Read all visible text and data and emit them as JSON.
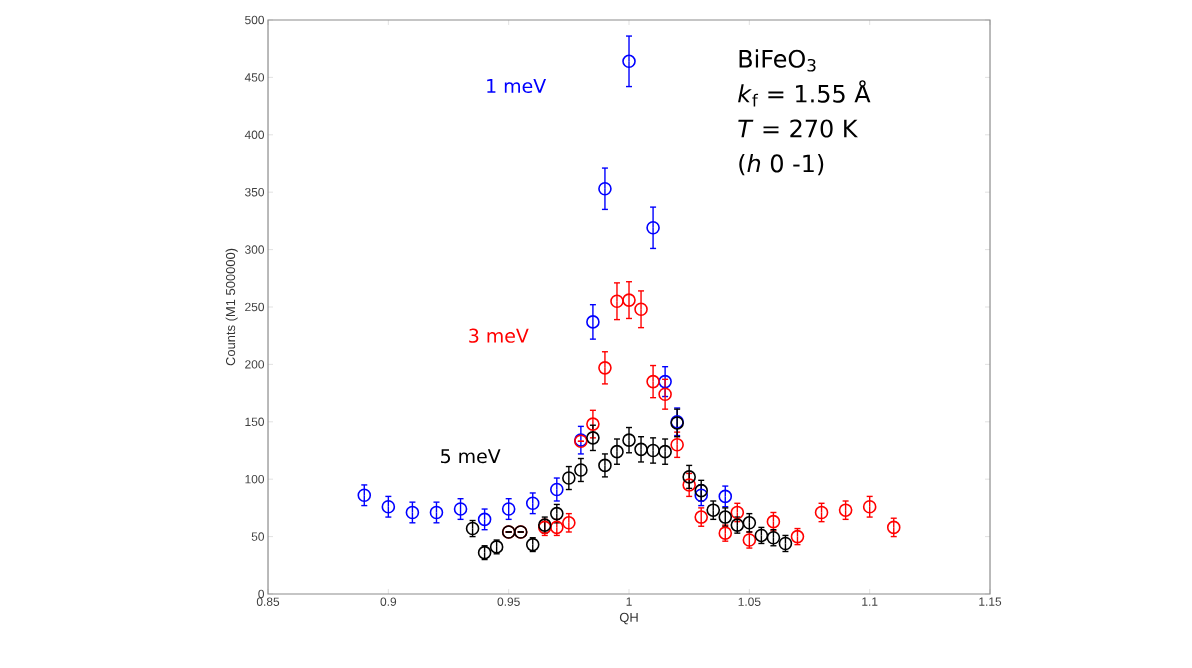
{
  "chart_data": {
    "type": "scatter",
    "xlabel": "QH",
    "ylabel": "Counts (M1 500000)",
    "xlim": [
      0.85,
      1.15
    ],
    "ylim": [
      0,
      500
    ],
    "xticks": [
      0.85,
      0.9,
      0.95,
      1,
      1.05,
      1.1,
      1.15
    ],
    "yticks": [
      0,
      50,
      100,
      150,
      200,
      250,
      300,
      350,
      400,
      450,
      500
    ],
    "marker": "circle",
    "grid": false,
    "annotations": [
      "BiFeO$_{3}$",
      "*k*$_{f}$ = 1.55 Å",
      "*T* = 270 K",
      "(*h* 0 -1)"
    ],
    "series": [
      {
        "name": "1 meV",
        "color": "#0000ff",
        "x": [
          0.89,
          0.9,
          0.91,
          0.92,
          0.93,
          0.94,
          0.95,
          0.96,
          0.97,
          0.98,
          0.985,
          0.99,
          1.0,
          1.01,
          1.015,
          1.02,
          1.03,
          1.04
        ],
        "values": [
          86,
          76,
          71,
          71,
          74,
          65,
          74,
          79,
          91,
          134,
          237,
          353,
          464,
          319,
          185,
          150,
          86,
          85
        ],
        "errors": [
          9,
          9,
          9,
          9,
          9,
          9,
          9,
          9,
          10,
          12,
          15,
          18,
          22,
          18,
          13,
          12,
          9,
          9
        ]
      },
      {
        "name": "3 meV",
        "color": "#ff0000",
        "x": [
          0.95,
          0.955,
          0.965,
          0.97,
          0.975,
          0.98,
          0.985,
          0.99,
          0.995,
          1.0,
          1.005,
          1.01,
          1.015,
          1.02,
          1.025,
          1.03,
          1.04,
          1.045,
          1.05,
          1.06,
          1.07,
          1.08,
          1.09,
          1.1,
          1.11
        ],
        "values": [
          54,
          54,
          58,
          58,
          62,
          133,
          148,
          197,
          255,
          256,
          248,
          185,
          174,
          130,
          95,
          67,
          53,
          71,
          47,
          63,
          50,
          71,
          73,
          76,
          58
        ],
        "errors": [
          null,
          null,
          7,
          7,
          8,
          null,
          12,
          14,
          16,
          16,
          16,
          14,
          13,
          11,
          10,
          8,
          7,
          8,
          7,
          8,
          7,
          8,
          8,
          9,
          8
        ]
      },
      {
        "name": "5 meV",
        "color": "#000000",
        "x": [
          0.935,
          0.94,
          0.945,
          0.95,
          0.955,
          0.96,
          0.965,
          0.97,
          0.975,
          0.98,
          0.985,
          0.99,
          0.995,
          1.0,
          1.005,
          1.01,
          1.015,
          1.02,
          1.025,
          1.03,
          1.035,
          1.04,
          1.045,
          1.05,
          1.055,
          1.06,
          1.065
        ],
        "values": [
          57,
          36,
          41,
          54,
          54,
          43,
          60,
          70,
          101,
          108,
          136,
          112,
          124,
          134,
          126,
          125,
          124,
          149,
          102,
          90,
          73,
          67,
          60,
          62,
          51,
          49,
          44
        ],
        "errors": [
          7,
          6,
          6,
          null,
          null,
          6,
          7,
          8,
          10,
          10,
          11,
          10,
          11,
          11,
          11,
          11,
          11,
          12,
          10,
          9,
          8,
          8,
          7,
          8,
          7,
          7,
          7
        ]
      }
    ]
  }
}
